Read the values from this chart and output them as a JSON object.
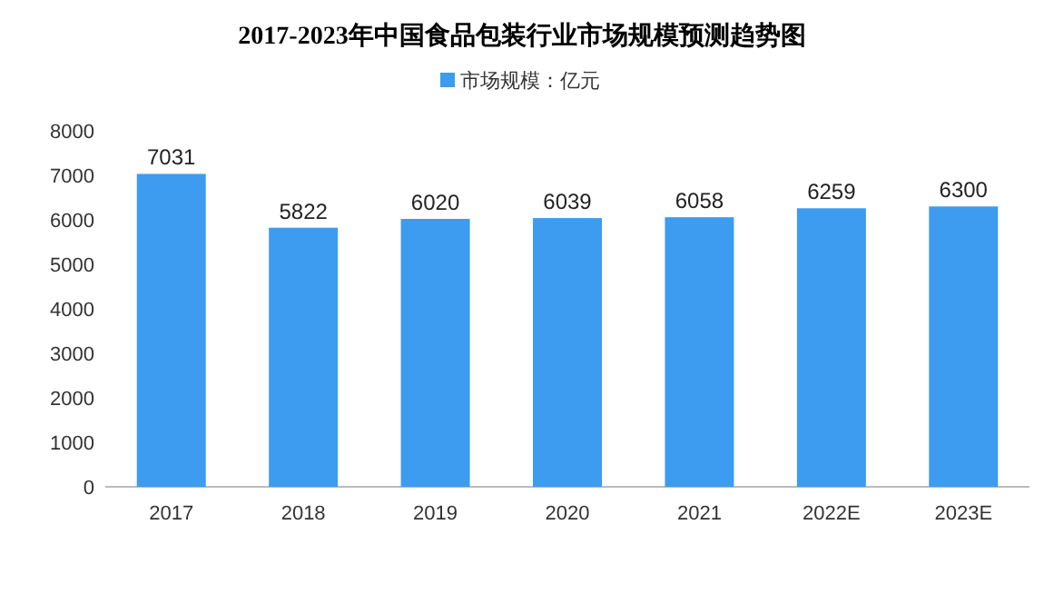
{
  "chart_data": {
    "type": "bar",
    "title": "2017-2023年中国食品包装行业市场规模预测趋势图",
    "categories": [
      "2017",
      "2018",
      "2019",
      "2020",
      "2021",
      "2022E",
      "2023E"
    ],
    "series": [
      {
        "name": "市场规模：亿元",
        "color": "#3d9cf0",
        "values": [
          7031,
          5822,
          6020,
          6039,
          6058,
          6259,
          6300
        ]
      }
    ],
    "ylim": [
      0,
      8000
    ],
    "yticks": [
      0,
      1000,
      2000,
      3000,
      4000,
      5000,
      6000,
      7000,
      8000
    ],
    "data_labels": true,
    "legend": "top"
  }
}
